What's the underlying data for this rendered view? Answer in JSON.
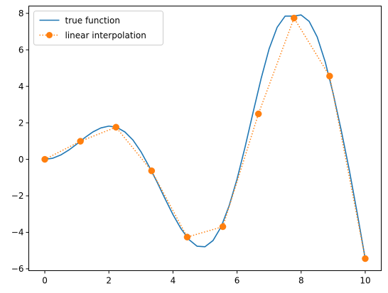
{
  "chart_data": {
    "type": "line",
    "title": "",
    "xlabel": "",
    "ylabel": "",
    "xlim": [
      -0.5,
      10.5
    ],
    "ylim": [
      -6.1,
      8.4
    ],
    "xticks": [
      0,
      2,
      4,
      6,
      8,
      10
    ],
    "yticks": [
      -6,
      -4,
      -2,
      0,
      2,
      4,
      6,
      8
    ],
    "grid": false,
    "legend_position": "top-left",
    "series": [
      {
        "name": "true function",
        "color": "#1f77b4",
        "style": "solid",
        "marker": "none",
        "x": [
          0,
          0.25,
          0.5,
          0.75,
          1,
          1.25,
          1.5,
          1.75,
          2,
          2.25,
          2.5,
          2.75,
          3,
          3.25,
          3.5,
          3.75,
          4,
          4.25,
          4.5,
          4.75,
          5,
          5.25,
          5.5,
          5.75,
          6,
          6.25,
          6.5,
          6.75,
          7,
          7.25,
          7.5,
          7.75,
          8,
          8.25,
          8.5,
          8.75,
          9,
          9.25,
          9.5,
          9.75,
          10
        ],
        "y": [
          0,
          0.06,
          0.24,
          0.51,
          0.84,
          1.19,
          1.5,
          1.72,
          1.82,
          1.75,
          1.5,
          1.06,
          0.42,
          -0.38,
          -1.23,
          -2.15,
          -3.03,
          -3.8,
          -4.4,
          -4.76,
          -4.79,
          -4.45,
          -3.71,
          -2.56,
          -1.08,
          0.67,
          2.57,
          4.42,
          6.05,
          7.23,
          7.85,
          7.85,
          7.91,
          7.56,
          6.71,
          5.35,
          3.6,
          1.6,
          -0.56,
          -2.95,
          -5.44
        ]
      },
      {
        "name": "linear interpolation",
        "color": "#ff7f0e",
        "style": "dotted",
        "marker": "circle",
        "x": [
          0,
          1.111,
          2.222,
          3.333,
          4.444,
          5.556,
          6.667,
          7.778,
          8.889,
          10
        ],
        "y": [
          0,
          0.99,
          1.76,
          -0.63,
          -4.26,
          -3.69,
          2.49,
          7.74,
          4.56,
          -5.44
        ]
      }
    ]
  }
}
